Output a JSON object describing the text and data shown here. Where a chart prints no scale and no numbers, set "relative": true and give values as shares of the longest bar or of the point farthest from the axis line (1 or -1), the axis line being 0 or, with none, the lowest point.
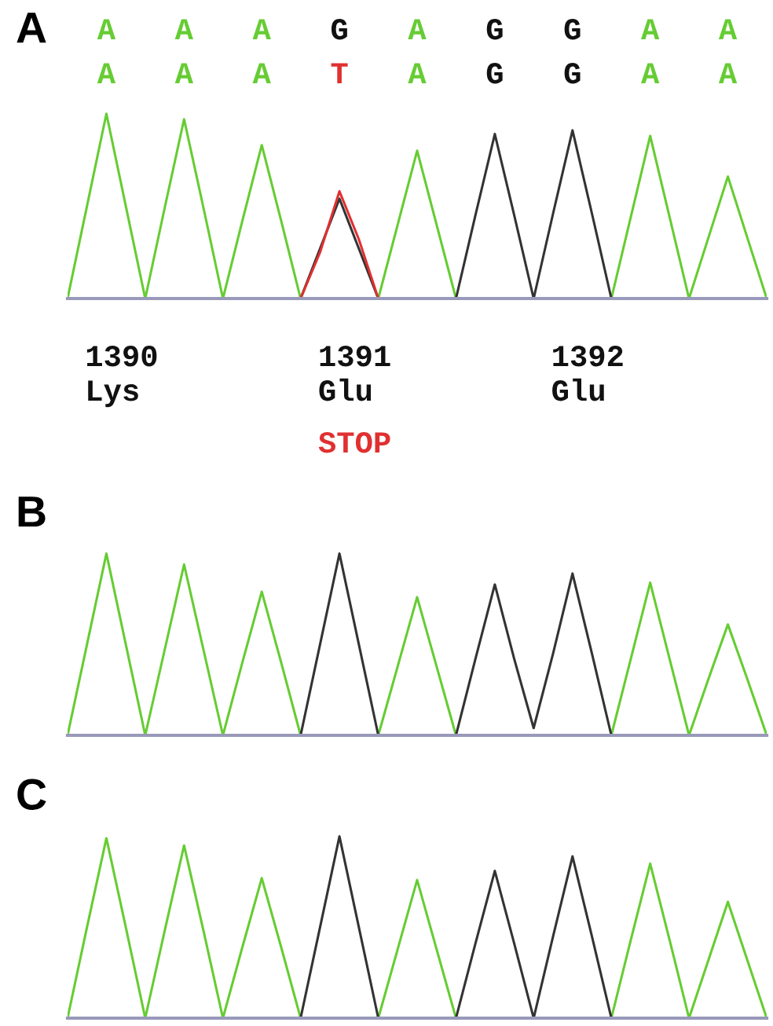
{
  "chart_data": [
    {
      "type": "line",
      "title": "A",
      "relative": true,
      "categories": [
        null,
        null,
        null,
        null,
        null,
        null,
        null,
        null,
        null,
        null,
        null,
        null,
        null,
        null,
        null,
        null,
        null,
        null,
        null,
        null,
        null,
        null,
        null,
        null,
        null,
        null,
        null,
        null,
        null,
        null,
        null,
        null,
        null,
        null,
        null,
        null,
        null
      ],
      "series": [
        {
          "color": "#66cc33",
          "values": [
            0,
            0.5,
            1,
            0.5,
            0,
            0.49,
            0.97,
            0.49,
            0,
            0.42,
            0.83,
            0.42,
            0,
            0,
            0,
            0,
            0,
            0.4,
            0.8,
            0.4,
            0,
            0,
            0,
            0,
            0,
            0,
            0,
            0,
            0,
            0.44,
            0.88,
            0.44,
            0,
            0.33,
            0.66,
            0.33,
            0
          ]
        },
        {
          "color": "#333333",
          "values": [
            0,
            0,
            0,
            0,
            0,
            0,
            0,
            0,
            0,
            0,
            0,
            0,
            0,
            0.27,
            0.54,
            0.27,
            0,
            0,
            0,
            0,
            0,
            0.45,
            0.89,
            0.45,
            0,
            0.46,
            0.91,
            0.46,
            0,
            0,
            0,
            0,
            0,
            0,
            0,
            0,
            0
          ]
        },
        {
          "color": "#e03030",
          "values": [
            null,
            null,
            null,
            null,
            null,
            null,
            null,
            null,
            null,
            null,
            null,
            null,
            0,
            0.25,
            0.58,
            0.32,
            0,
            null,
            null,
            null,
            null,
            null,
            null,
            null,
            null,
            null,
            null,
            null,
            null,
            null,
            null,
            null,
            null,
            null,
            null,
            null,
            null
          ]
        }
      ],
      "annotations": [
        "A",
        "A",
        "A",
        "G",
        "A",
        "G",
        "G",
        "A",
        "A",
        "A",
        "A",
        "A",
        "T",
        "A",
        "G",
        "G",
        "A",
        "A",
        "1390",
        "Lys",
        "1391",
        "Glu",
        "STOP",
        "1392",
        "Glu"
      ]
    },
    {
      "type": "line",
      "title": "B",
      "relative": true,
      "categories": [
        null,
        null,
        null,
        null,
        null,
        null,
        null,
        null,
        null,
        null,
        null,
        null,
        null,
        null,
        null,
        null,
        null,
        null,
        null,
        null,
        null,
        null,
        null,
        null,
        null,
        null,
        null,
        null,
        null,
        null,
        null,
        null,
        null,
        null,
        null,
        null,
        null
      ],
      "series": [
        {
          "color": "#66cc33",
          "values": [
            0,
            0.5,
            1,
            0.5,
            0,
            0.47,
            0.94,
            0.47,
            0,
            0.4,
            0.79,
            0.4,
            0,
            0,
            0,
            0,
            0,
            0.38,
            0.76,
            0.38,
            0,
            0,
            0,
            0,
            0,
            0,
            0,
            0,
            0,
            0.42,
            0.84,
            0.42,
            0,
            0.31,
            0.61,
            0.31,
            0
          ]
        },
        {
          "color": "#333333",
          "values": [
            0,
            0,
            0,
            0,
            0,
            0,
            0,
            0,
            0,
            0,
            0,
            0,
            0,
            0.5,
            1,
            0.5,
            0,
            0,
            0,
            0,
            0,
            0.42,
            0.83,
            0.42,
            0.04,
            0.45,
            0.89,
            0.45,
            0,
            0,
            0,
            0,
            0,
            0,
            0,
            0,
            0
          ]
        }
      ]
    },
    {
      "type": "line",
      "title": "C",
      "relative": true,
      "categories": [
        null,
        null,
        null,
        null,
        null,
        null,
        null,
        null,
        null,
        null,
        null,
        null,
        null,
        null,
        null,
        null,
        null,
        null,
        null,
        null,
        null,
        null,
        null,
        null,
        null,
        null,
        null,
        null,
        null,
        null,
        null,
        null,
        null,
        null,
        null,
        null,
        null
      ],
      "series": [
        {
          "color": "#66cc33",
          "values": [
            0,
            0.5,
            0.99,
            0.5,
            0,
            0.48,
            0.95,
            0.48,
            0,
            0.39,
            0.77,
            0.39,
            0,
            0,
            0,
            0,
            0,
            0.38,
            0.76,
            0.38,
            0,
            0,
            0,
            0,
            0,
            0,
            0,
            0,
            0,
            0.43,
            0.85,
            0.43,
            0,
            0.32,
            0.64,
            0.32,
            0
          ]
        },
        {
          "color": "#333333",
          "values": [
            0,
            0,
            0,
            0,
            0,
            0,
            0,
            0,
            0,
            0,
            0,
            0,
            0,
            0.5,
            1,
            0.5,
            0,
            0,
            0,
            0,
            0,
            0.41,
            0.81,
            0.41,
            0,
            0.45,
            0.89,
            0.45,
            0,
            0,
            0,
            0,
            0,
            0,
            0,
            0,
            0
          ]
        }
      ]
    }
  ]
}
